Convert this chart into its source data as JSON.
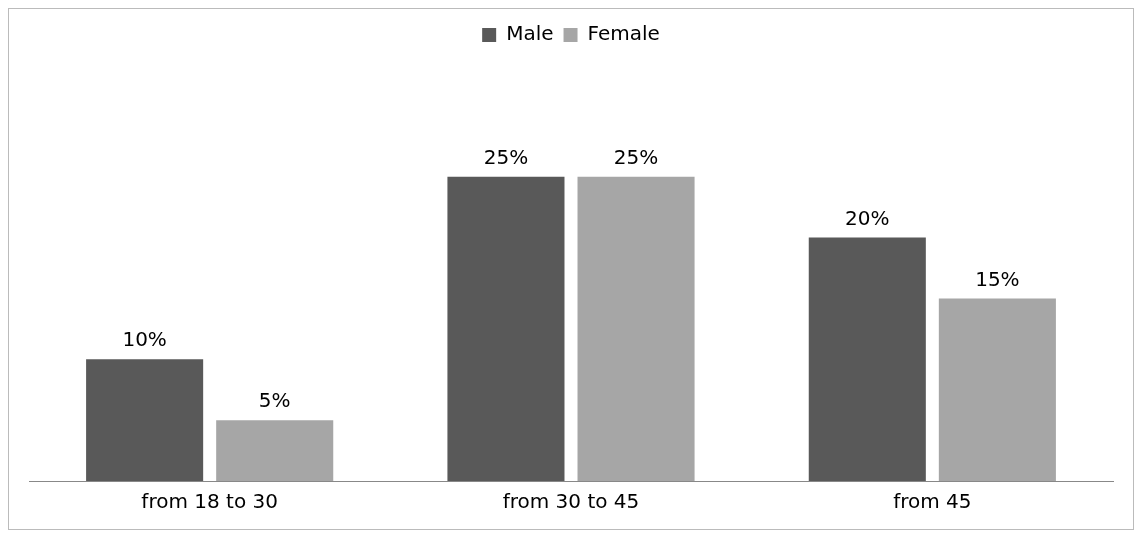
{
  "chart_data": {
    "type": "bar",
    "categories": [
      "from 18 to 30",
      "from 30 to 45",
      "from 45"
    ],
    "series": [
      {
        "name": "Male",
        "color": "#595959",
        "values": [
          10,
          25,
          20
        ],
        "value_labels": [
          "10%",
          "25%",
          "20%"
        ]
      },
      {
        "name": "Female",
        "color": "#a6a6a6",
        "values": [
          5,
          25,
          15
        ],
        "value_labels": [
          "5%",
          "25%",
          "15%"
        ]
      }
    ],
    "legend": "top"
  }
}
